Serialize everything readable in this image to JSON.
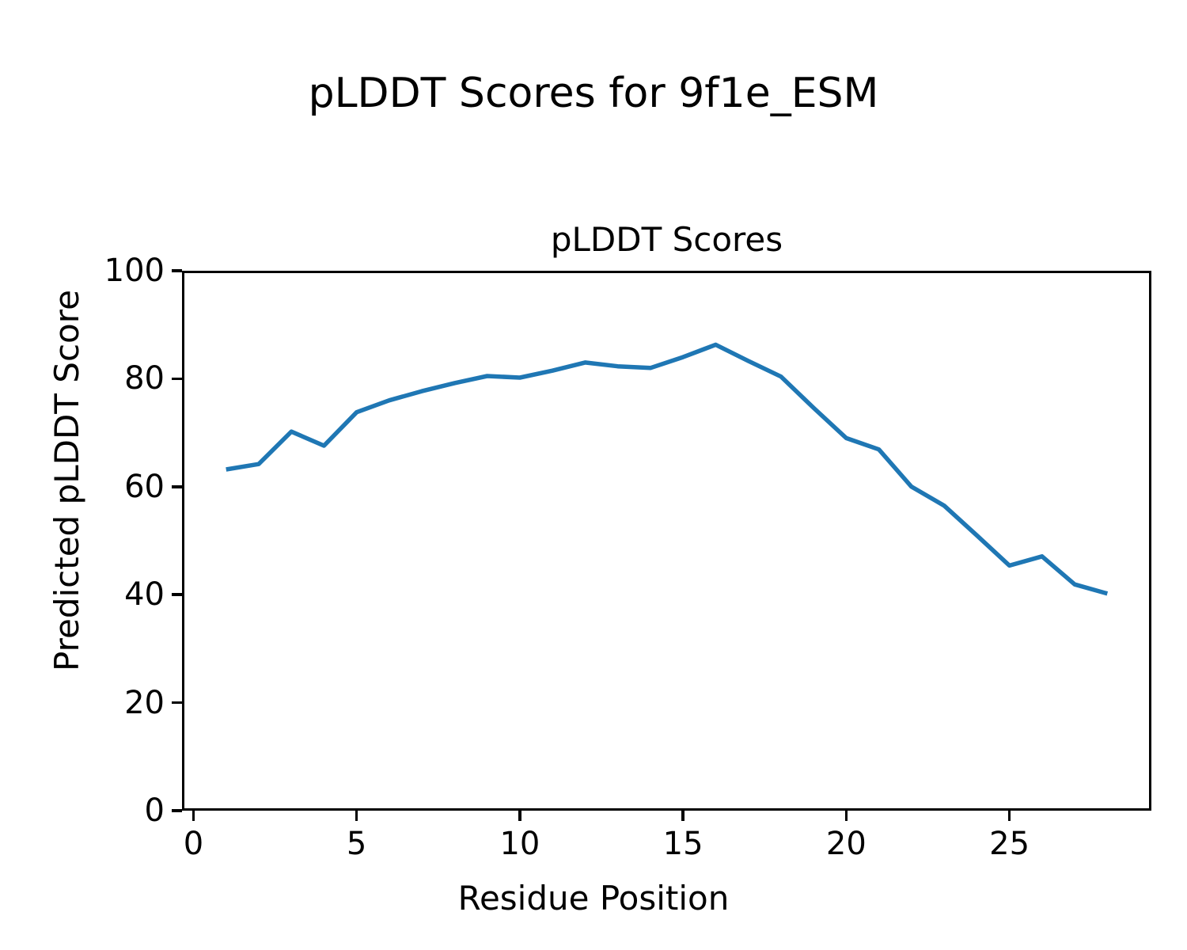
{
  "suptitle": "pLDDT Scores for 9f1e_ESM",
  "chart_data": {
    "type": "line",
    "title": "pLDDT Scores",
    "xlabel": "Residue Position",
    "ylabel": "Predicted pLDDT Score",
    "series_name": "pLDDT",
    "x": [
      1,
      2,
      3,
      4,
      5,
      6,
      7,
      8,
      9,
      10,
      11,
      12,
      13,
      14,
      15,
      16,
      17,
      18,
      19,
      20,
      21,
      22,
      23,
      24,
      25,
      26,
      27,
      28
    ],
    "y": [
      63.2,
      64.2,
      70.2,
      67.6,
      73.8,
      76.0,
      77.7,
      79.2,
      80.5,
      80.2,
      81.5,
      83.0,
      82.3,
      82.0,
      84.0,
      86.3,
      83.3,
      80.4,
      74.6,
      69.0,
      66.9,
      60.0,
      56.5,
      51.0,
      45.4,
      47.1,
      41.9,
      40.2
    ],
    "xlim": [
      -0.35,
      29.35
    ],
    "ylim": [
      0,
      100
    ],
    "xticks": [
      0,
      5,
      10,
      15,
      20,
      25
    ],
    "yticks": [
      0,
      20,
      40,
      60,
      80,
      100
    ],
    "line_color": "#1f77b4",
    "axis_color": "#000000",
    "background_color": "#ffffff",
    "grid": false,
    "legend": null
  }
}
